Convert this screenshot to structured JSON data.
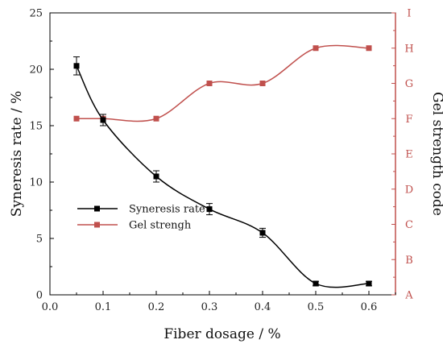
{
  "chart_data": {
    "type": "line",
    "title": "",
    "xlabel": "Fiber dosage / %",
    "ylabel_left": "Syneresis rate / %",
    "ylabel_right": "Gel strength code",
    "xlim": [
      0.0,
      0.65
    ],
    "ylim_left": [
      0,
      25
    ],
    "ylim_right": [
      "A",
      "I"
    ],
    "x_ticks": [
      "0.0",
      "0.1",
      "0.2",
      "0.3",
      "0.4",
      "0.5",
      "0.6"
    ],
    "y_left_ticks": [
      "0",
      "5",
      "10",
      "15",
      "20",
      "25"
    ],
    "y_right_ticks": [
      "A",
      "B",
      "C",
      "D",
      "E",
      "F",
      "G",
      "H",
      "I"
    ],
    "grid": false,
    "legend_position": "center-left",
    "series": [
      {
        "name": "Syneresis rate",
        "axis": "left",
        "color": "#000000",
        "marker": "square",
        "x": [
          0.05,
          0.1,
          0.2,
          0.3,
          0.4,
          0.5,
          0.6
        ],
        "y": [
          20.3,
          15.5,
          10.5,
          7.6,
          5.5,
          1.0,
          1.0
        ],
        "error": [
          0.8,
          0.5,
          0.5,
          0.5,
          0.4,
          0.2,
          0.2
        ]
      },
      {
        "name": "Gel strengh",
        "axis": "right",
        "color": "#c0504d",
        "marker": "square",
        "x": [
          0.05,
          0.1,
          0.2,
          0.3,
          0.4,
          0.5,
          0.6
        ],
        "y": [
          "F",
          "F",
          "F",
          "G",
          "G",
          "H",
          "H"
        ]
      }
    ]
  }
}
